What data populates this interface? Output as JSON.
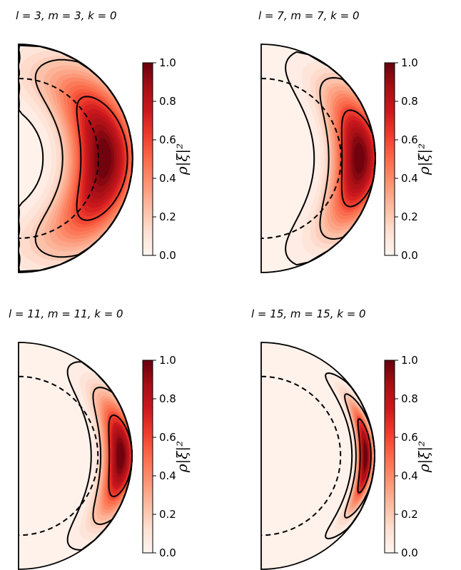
{
  "chart_data": [
    {
      "type": "heatmap",
      "title": "l = 3, m = 3, k = 0",
      "l": 3,
      "m": 3,
      "k": 0,
      "colorbar": {
        "label": "ρ|ξ|²",
        "range": [
          0.0,
          1.0
        ],
        "ticks": [
          "0.0",
          "0.2",
          "0.4",
          "0.6",
          "0.8",
          "1.0"
        ]
      },
      "peak": {
        "r": 0.75,
        "colat": 90
      },
      "contour_levels": [
        0.03,
        0.2,
        0.6
      ],
      "dashed_radius": 0.7
    },
    {
      "type": "heatmap",
      "title": "l = 7, m = 7, k = 0",
      "l": 7,
      "m": 7,
      "k": 0,
      "colorbar": {
        "label": "ρ|ξ|²",
        "range": [
          0.0,
          1.0
        ],
        "ticks": [
          "0.0",
          "0.2",
          "0.4",
          "0.6",
          "0.8",
          "1.0"
        ]
      },
      "peak": {
        "r": 0.86,
        "colat": 90
      },
      "contour_levels": [
        0.03,
        0.2,
        0.6
      ],
      "dashed_radius": 0.7
    },
    {
      "type": "heatmap",
      "title": "l = 11, m = 11, k = 0",
      "l": 11,
      "m": 11,
      "k": 0,
      "colorbar": {
        "label": "ρ|ξ|²",
        "range": [
          0.0,
          1.0
        ],
        "ticks": [
          "0.0",
          "0.2",
          "0.4",
          "0.6",
          "0.8",
          "1.0"
        ]
      },
      "peak": {
        "r": 0.9,
        "colat": 90
      },
      "contour_levels": [
        0.03,
        0.2,
        0.6
      ],
      "dashed_radius": 0.7
    },
    {
      "type": "heatmap",
      "title": "l = 15, m = 15, k = 0",
      "l": 15,
      "m": 15,
      "k": 0,
      "colorbar": {
        "label": "ρ|ξ|²",
        "range": [
          0.0,
          1.0
        ],
        "ticks": [
          "0.0",
          "0.2",
          "0.4",
          "0.6",
          "0.8",
          "1.0"
        ]
      },
      "peak": {
        "r": 0.92,
        "colat": 90
      },
      "contour_levels": [
        0.03,
        0.2,
        0.6
      ],
      "dashed_radius": 0.7
    }
  ]
}
